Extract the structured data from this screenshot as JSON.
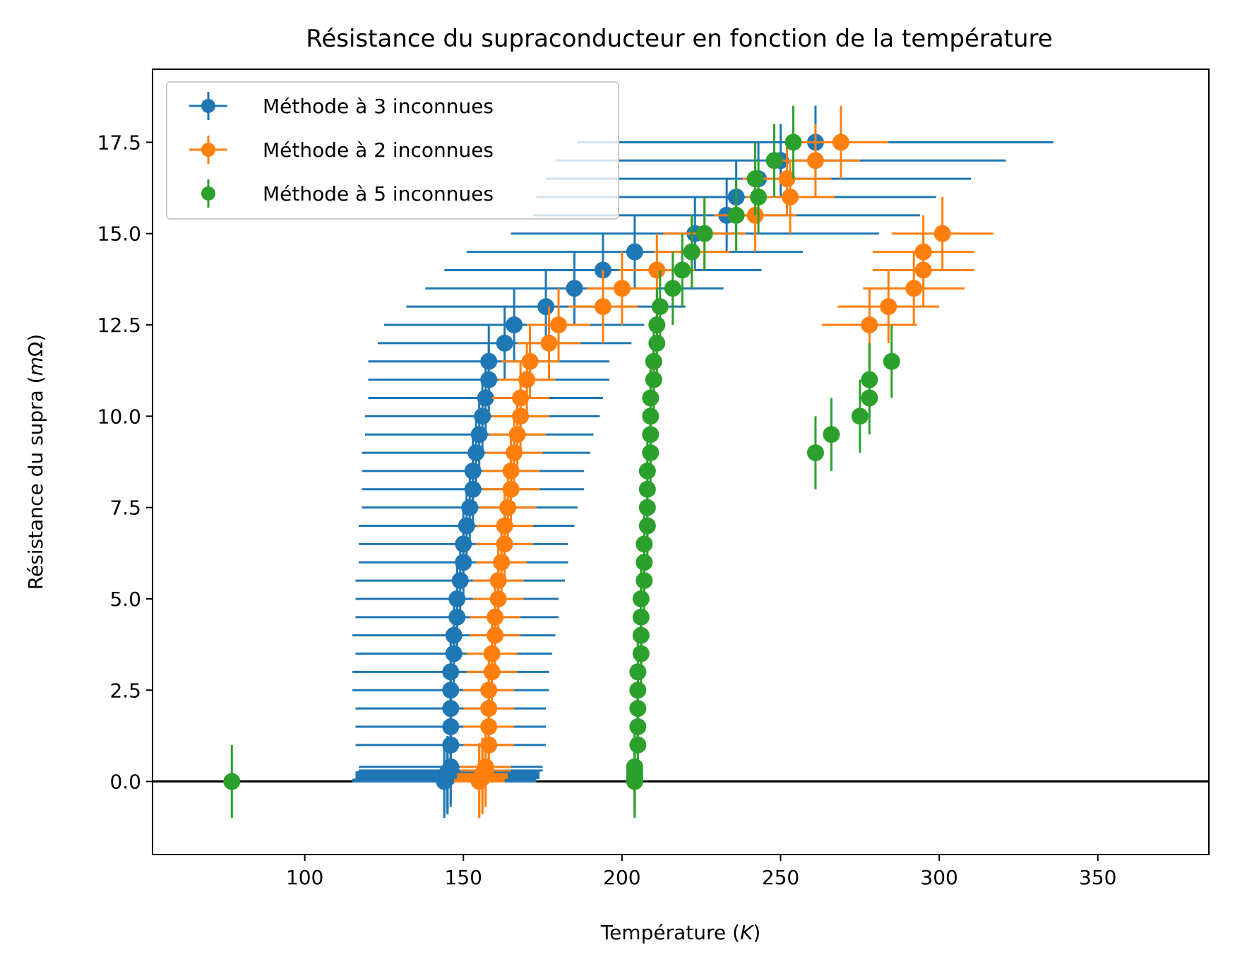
{
  "chart_data": {
    "type": "scatter",
    "title": "Résistance du supraconducteur en fonction de la température",
    "xlabel": "Température (K)",
    "xlabel_parts": [
      "Température (",
      "K",
      ")"
    ],
    "ylabel": "Résistance du supra (mΩ)",
    "ylabel_parts": [
      "Résistance du supra (",
      "m",
      "Ω)"
    ],
    "xlim": [
      52,
      385
    ],
    "ylim": [
      -2.0,
      19.5
    ],
    "xticks": [
      100,
      150,
      200,
      250,
      300,
      350
    ],
    "yticks": [
      0.0,
      2.5,
      5.0,
      7.5,
      10.0,
      12.5,
      15.0,
      17.5
    ],
    "ytick_labels": [
      "0.0",
      "2.5",
      "5.0",
      "7.5",
      "10.0",
      "12.5",
      "15.0",
      "17.5"
    ],
    "grid": false,
    "legend_position": "top-left",
    "reference_line": {
      "y": 0.0,
      "color": "#000000"
    },
    "series": [
      {
        "name": "Méthode à 3 inconnues",
        "color": "#1f77b4",
        "x": [
          144,
          144,
          145,
          145,
          145,
          145,
          146,
          146,
          146,
          146,
          146,
          146,
          146,
          147,
          147,
          148,
          148,
          149,
          150,
          150,
          151,
          152,
          153,
          153,
          154,
          155,
          156,
          157,
          158,
          158,
          163,
          166,
          176,
          185,
          194,
          204,
          223,
          233,
          236,
          243,
          250,
          261
        ],
        "y": [
          0.0,
          0.05,
          0.1,
          0.15,
          0.2,
          0.25,
          0.3,
          0.4,
          1.0,
          1.5,
          2.0,
          2.5,
          3.0,
          3.5,
          4.0,
          4.5,
          5.0,
          5.5,
          6.0,
          6.5,
          7.0,
          7.5,
          8.0,
          8.5,
          9.0,
          9.5,
          10.0,
          10.5,
          11.0,
          11.5,
          12.0,
          12.5,
          13.0,
          13.5,
          14.0,
          14.5,
          15.0,
          15.5,
          16.0,
          16.5,
          17.0,
          17.5
        ],
        "x_err": [
          29,
          29,
          29,
          29,
          29,
          29,
          29,
          29,
          30,
          30,
          30,
          31,
          31,
          31,
          32,
          32,
          32,
          33,
          33,
          33,
          34,
          34,
          35,
          35,
          36,
          36,
          37,
          37,
          38,
          38,
          40,
          41,
          44,
          47,
          50,
          53,
          58,
          61,
          63,
          67,
          71,
          75
        ],
        "y_err": [
          1.0,
          1.0,
          1.0,
          1.0,
          1.0,
          1.0,
          1.0,
          1.0,
          1.0,
          1.0,
          1.0,
          1.0,
          1.0,
          1.0,
          1.0,
          1.0,
          1.0,
          1.0,
          1.0,
          1.0,
          1.0,
          1.0,
          1.0,
          1.0,
          1.0,
          1.0,
          1.0,
          1.0,
          1.0,
          1.0,
          1.0,
          1.0,
          1.0,
          1.0,
          1.0,
          1.0,
          1.0,
          1.0,
          1.0,
          1.0,
          1.0,
          1.0
        ]
      },
      {
        "name": "Méthode à 2 inconnues",
        "color": "#ff7f0e",
        "x": [
          155,
          155,
          156,
          156,
          156,
          157,
          157,
          158,
          158,
          158,
          158,
          159,
          159,
          160,
          160,
          161,
          161,
          162,
          163,
          163,
          164,
          165,
          165,
          166,
          167,
          168,
          168,
          170,
          171,
          177,
          180,
          194,
          200,
          211,
          222,
          226,
          242,
          253,
          252,
          261,
          269,
          278,
          284,
          292,
          295,
          295,
          301
        ],
        "y": [
          0.0,
          0.05,
          0.1,
          0.15,
          0.2,
          0.3,
          0.4,
          1.0,
          1.5,
          2.0,
          2.5,
          3.0,
          3.5,
          4.0,
          4.5,
          5.0,
          5.5,
          6.0,
          6.5,
          7.0,
          7.5,
          8.0,
          8.5,
          9.0,
          9.5,
          10.0,
          10.5,
          11.0,
          11.5,
          12.0,
          12.5,
          13.0,
          13.5,
          14.0,
          14.5,
          15.0,
          15.5,
          16.0,
          16.5,
          17.0,
          17.5,
          12.5,
          13.0,
          13.5,
          14.0,
          14.5,
          15.0
        ],
        "x_err": [
          8,
          8,
          8,
          8,
          8,
          8,
          8,
          8,
          8,
          8,
          8,
          8,
          8,
          8,
          8,
          8,
          8,
          8,
          9,
          9,
          9,
          9,
          9,
          9,
          9,
          9,
          9,
          9,
          9,
          10,
          10,
          11,
          11,
          12,
          12,
          13,
          13,
          14,
          14,
          14,
          15,
          15,
          16,
          16,
          16,
          16,
          16
        ],
        "y_err": [
          1.0,
          1.0,
          1.0,
          1.0,
          1.0,
          1.0,
          1.0,
          1.0,
          1.0,
          1.0,
          1.0,
          1.0,
          1.0,
          1.0,
          1.0,
          1.0,
          1.0,
          1.0,
          1.0,
          1.0,
          1.0,
          1.0,
          1.0,
          1.0,
          1.0,
          1.0,
          1.0,
          1.0,
          1.0,
          1.0,
          1.0,
          1.0,
          1.0,
          1.0,
          1.0,
          1.0,
          1.0,
          1.0,
          1.0,
          1.0,
          1.0,
          1.0,
          1.0,
          1.0,
          1.0,
          1.0,
          1.0
        ]
      },
      {
        "name": "Méthode à 5 inconnues",
        "color": "#2ca02c",
        "x": [
          77,
          204,
          204,
          204,
          204,
          204,
          204,
          205,
          205,
          205,
          205,
          205,
          206,
          206,
          206,
          206,
          207,
          207,
          207,
          208,
          208,
          208,
          208,
          209,
          209,
          209,
          209,
          210,
          210,
          211,
          211,
          212,
          216,
          219,
          222,
          226,
          236,
          243,
          242,
          248,
          254,
          261,
          266,
          275,
          278,
          278,
          285
        ],
        "y": [
          0.0,
          0.0,
          0.05,
          0.1,
          0.2,
          0.3,
          0.4,
          1.0,
          1.5,
          2.0,
          2.5,
          3.0,
          3.5,
          4.0,
          4.5,
          5.0,
          5.5,
          6.0,
          6.5,
          7.0,
          7.5,
          8.0,
          8.5,
          9.0,
          9.5,
          10.0,
          10.5,
          11.0,
          11.5,
          12.0,
          12.5,
          13.0,
          13.5,
          14.0,
          14.5,
          15.0,
          15.5,
          16.0,
          16.5,
          17.0,
          17.5,
          9.0,
          9.5,
          10.0,
          10.5,
          11.0,
          11.5
        ],
        "y_err": [
          1.0,
          1.0,
          1.0,
          1.0,
          1.0,
          1.0,
          1.0,
          1.0,
          1.0,
          1.0,
          1.0,
          1.0,
          1.0,
          1.0,
          1.0,
          1.0,
          1.0,
          1.0,
          1.0,
          1.0,
          1.0,
          1.0,
          1.0,
          1.0,
          1.0,
          1.0,
          1.0,
          1.0,
          1.0,
          1.0,
          1.0,
          1.0,
          1.0,
          1.0,
          1.0,
          1.0,
          1.0,
          1.0,
          1.0,
          1.0,
          1.0,
          1.0,
          1.0,
          1.0,
          1.0,
          1.0,
          1.0
        ]
      }
    ]
  }
}
